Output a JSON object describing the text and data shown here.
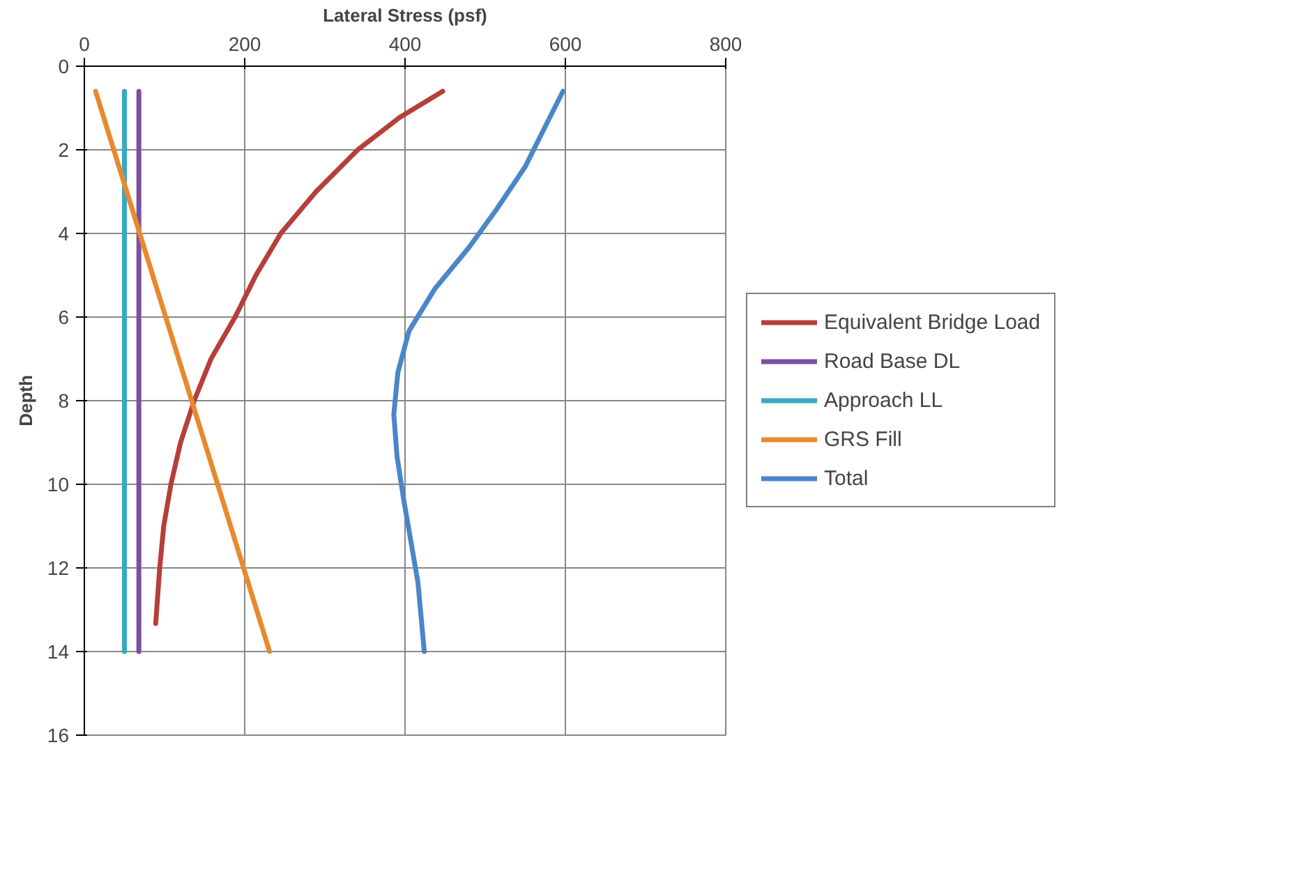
{
  "chart_data": {
    "type": "line",
    "xlabel": "Lateral Stress (psf)",
    "ylabel": "Depth",
    "xlim": [
      0,
      800
    ],
    "xticks": [
      0,
      200,
      400,
      600,
      800
    ],
    "ylim": [
      16,
      0
    ],
    "yticks": [
      0,
      2,
      4,
      6,
      8,
      10,
      12,
      14,
      16
    ],
    "grid": true,
    "legend": "right",
    "marker": "none",
    "line_style": "solid",
    "series": [
      {
        "name": "Equivalent Bridge Load",
        "color": "#b5403a",
        "x": [
          447,
          393,
          341,
          289,
          245,
          214,
          188,
          158,
          137,
          120,
          108,
          99,
          94,
          89
        ],
        "values": [
          0.6,
          1.23,
          2,
          3,
          4,
          5,
          6,
          7,
          8,
          9,
          10,
          11,
          12,
          13.33
        ]
      },
      {
        "name": "Road Base DL",
        "color": "#7b4fa0",
        "x": [
          68,
          68
        ],
        "values": [
          0.6,
          14
        ]
      },
      {
        "name": "Approach LL",
        "color": "#3aa8c0",
        "x": [
          50,
          50
        ],
        "values": [
          0.6,
          14
        ]
      },
      {
        "name": "GRS Fill",
        "color": "#e8892f",
        "x": [
          14,
          231
        ],
        "values": [
          0.6,
          14
        ]
      },
      {
        "name": "Total",
        "color": "#4a86c8",
        "x": [
          597,
          576,
          550,
          515,
          480,
          437,
          405,
          391,
          386,
          390,
          398,
          407,
          416,
          424
        ],
        "values": [
          0.6,
          1.4,
          2.4,
          3.4,
          4.33,
          5.33,
          6.33,
          7.33,
          8.33,
          9.33,
          10.33,
          11.33,
          12.33,
          14
        ]
      }
    ]
  }
}
